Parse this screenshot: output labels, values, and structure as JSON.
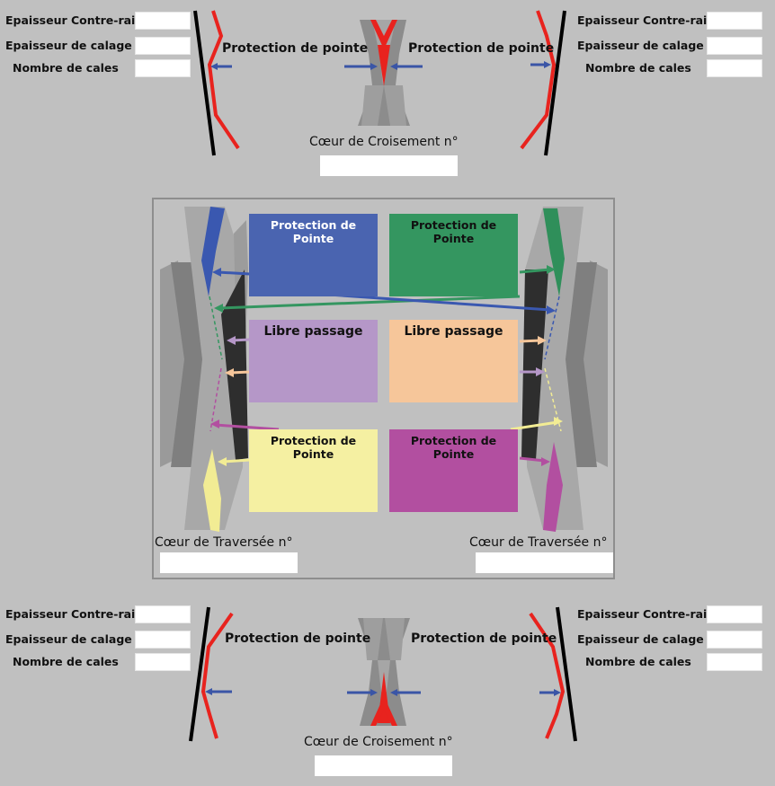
{
  "form_labels": {
    "epaisseur_contre_rail": "Epaisseur Contre-rail",
    "epaisseur_calage": "Epaisseur de calage",
    "nombre_cales": "Nombre de cales"
  },
  "top": {
    "protection_left": "Protection de pointe",
    "protection_right": "Protection de pointe",
    "coeur_label": "Cœur de Croisement n°",
    "coeur_value": ""
  },
  "bottom": {
    "protection_left": "Protection de pointe",
    "protection_right": "Protection de pointe",
    "coeur_label": "Cœur de Croisement n°",
    "coeur_value": ""
  },
  "middle": {
    "box_blue": "Protection de Pointe",
    "box_green": "Protection de Pointe",
    "box_purple": "Libre passage",
    "box_orange": "Libre passage",
    "box_yellow": "Protection de Pointe",
    "box_magenta": "Protection de Pointe",
    "coeur_left_label": "Cœur de Traversée n°",
    "coeur_right_label": "Cœur de Traversée n°",
    "coeur_left_value": "",
    "coeur_right_value": ""
  },
  "colors": {
    "background": "#c0c0c0",
    "blue": "#4a64b0",
    "green": "#349660",
    "purple": "#b597c8",
    "orange": "#f6c69a",
    "yellow": "#f5f0a2",
    "magenta": "#b24fa0",
    "red": "#e8231e",
    "rail_grey": "#8c8c8c"
  }
}
